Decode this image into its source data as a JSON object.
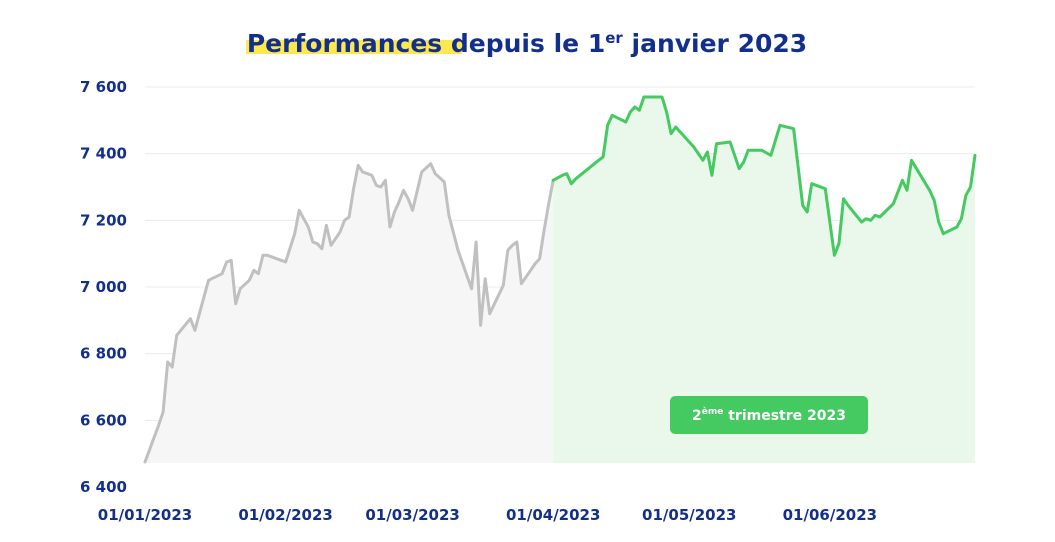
{
  "chart_data": {
    "type": "line",
    "title": {
      "highlight": "Performances",
      "part1": " depuis le 1",
      "sup": "er",
      "part2": " janvier 2023"
    },
    "highlight_color": "#fde84d",
    "title_color": "#132f8c",
    "xlabel": "",
    "ylabel": "",
    "ylim": [
      6400,
      7600
    ],
    "yticks": [
      7600,
      7400,
      7200,
      7000,
      6800,
      6600,
      6400
    ],
    "ytick_labels": [
      "7 600",
      "7 400",
      "7 200",
      "7 000",
      "6 800",
      "6 600",
      "6 400"
    ],
    "grid": true,
    "xlim": [
      "2023-01-01",
      "2023-06-30"
    ],
    "xtick_labels": [
      {
        "date": "2023-01-01",
        "label": "01/01/2023"
      },
      {
        "date": "2023-02-01",
        "label": "01/02/2023"
      },
      {
        "date": "2023-03-01",
        "label": "01/03/2023"
      },
      {
        "date": "2023-04-01",
        "label": "01/04/2023"
      },
      {
        "date": "2023-05-01",
        "label": "01/05/2023"
      },
      {
        "date": "2023-06-01",
        "label": "01/06/2023"
      }
    ],
    "highlight_period": {
      "start": "2023-04-01",
      "end": "2023-06-30",
      "label": "2",
      "label_sup": "ème",
      "label_rest": " trimestre 2023",
      "color": "#45c961",
      "fill": "#eaf8ec"
    },
    "q1_color": "#c0c0c0",
    "q1_fill": "#f6f6f6",
    "series": [
      {
        "values": [
          [
            "2023-01-01",
            6475
          ],
          [
            "2023-01-04",
            6585
          ],
          [
            "2023-01-05",
            6625
          ],
          [
            "2023-01-06",
            6775
          ],
          [
            "2023-01-07",
            6760
          ],
          [
            "2023-01-08",
            6855
          ],
          [
            "2023-01-11",
            6905
          ],
          [
            "2023-01-12",
            6870
          ],
          [
            "2023-01-13",
            6920
          ],
          [
            "2023-01-15",
            7020
          ],
          [
            "2023-01-18",
            7040
          ],
          [
            "2023-01-19",
            7075
          ],
          [
            "2023-01-20",
            7080
          ],
          [
            "2023-01-21",
            6950
          ],
          [
            "2023-01-22",
            6995
          ],
          [
            "2023-01-24",
            7020
          ],
          [
            "2023-01-25",
            7050
          ],
          [
            "2023-01-26",
            7040
          ],
          [
            "2023-01-27",
            7095
          ],
          [
            "2023-01-28",
            7095
          ],
          [
            "2023-01-31",
            7080
          ],
          [
            "2023-02-01",
            7075
          ],
          [
            "2023-02-03",
            7160
          ],
          [
            "2023-02-04",
            7230
          ],
          [
            "2023-02-05",
            7205
          ],
          [
            "2023-02-06",
            7180
          ],
          [
            "2023-02-07",
            7135
          ],
          [
            "2023-02-08",
            7130
          ],
          [
            "2023-02-09",
            7115
          ],
          [
            "2023-02-10",
            7185
          ],
          [
            "2023-02-11",
            7125
          ],
          [
            "2023-02-13",
            7165
          ],
          [
            "2023-02-14",
            7200
          ],
          [
            "2023-02-15",
            7210
          ],
          [
            "2023-02-16",
            7295
          ],
          [
            "2023-02-17",
            7365
          ],
          [
            "2023-02-18",
            7345
          ],
          [
            "2023-02-20",
            7335
          ],
          [
            "2023-02-21",
            7305
          ],
          [
            "2023-02-22",
            7300
          ],
          [
            "2023-02-23",
            7320
          ],
          [
            "2023-02-24",
            7180
          ],
          [
            "2023-02-25",
            7225
          ],
          [
            "2023-02-26",
            7255
          ],
          [
            "2023-02-27",
            7290
          ],
          [
            "2023-02-28",
            7265
          ],
          [
            "2023-03-01",
            7230
          ],
          [
            "2023-03-03",
            7345
          ],
          [
            "2023-03-05",
            7370
          ],
          [
            "2023-03-06",
            7340
          ],
          [
            "2023-03-08",
            7315
          ],
          [
            "2023-03-09",
            7215
          ],
          [
            "2023-03-11",
            7110
          ],
          [
            "2023-03-14",
            6995
          ],
          [
            "2023-03-15",
            7135
          ],
          [
            "2023-03-16",
            6885
          ],
          [
            "2023-03-17",
            7025
          ],
          [
            "2023-03-18",
            6920
          ],
          [
            "2023-03-21",
            7005
          ],
          [
            "2023-03-22",
            7110
          ],
          [
            "2023-03-23",
            7125
          ],
          [
            "2023-03-24",
            7135
          ],
          [
            "2023-03-25",
            7010
          ],
          [
            "2023-03-26",
            7030
          ],
          [
            "2023-03-28",
            7070
          ],
          [
            "2023-03-29",
            7085
          ],
          [
            "2023-03-30",
            7170
          ],
          [
            "2023-03-31",
            7250
          ],
          [
            "2023-04-01",
            7320
          ]
        ]
      },
      {
        "values": [
          [
            "2023-04-01",
            7320
          ],
          [
            "2023-04-03",
            7335
          ],
          [
            "2023-04-04",
            7340
          ],
          [
            "2023-04-05",
            7310
          ],
          [
            "2023-04-06",
            7325
          ],
          [
            "2023-04-11",
            7380
          ],
          [
            "2023-04-12",
            7390
          ],
          [
            "2023-04-13",
            7485
          ],
          [
            "2023-04-14",
            7515
          ],
          [
            "2023-04-17",
            7495
          ],
          [
            "2023-04-18",
            7525
          ],
          [
            "2023-04-19",
            7540
          ],
          [
            "2023-04-20",
            7530
          ],
          [
            "2023-04-21",
            7570
          ],
          [
            "2023-04-25",
            7570
          ],
          [
            "2023-04-26",
            7525
          ],
          [
            "2023-04-27",
            7460
          ],
          [
            "2023-04-28",
            7480
          ],
          [
            "2023-05-02",
            7420
          ],
          [
            "2023-05-04",
            7380
          ],
          [
            "2023-05-05",
            7405
          ],
          [
            "2023-05-06",
            7335
          ],
          [
            "2023-05-07",
            7430
          ],
          [
            "2023-05-10",
            7435
          ],
          [
            "2023-05-12",
            7355
          ],
          [
            "2023-05-13",
            7375
          ],
          [
            "2023-05-14",
            7410
          ],
          [
            "2023-05-17",
            7410
          ],
          [
            "2023-05-19",
            7395
          ],
          [
            "2023-05-21",
            7485
          ],
          [
            "2023-05-24",
            7475
          ],
          [
            "2023-05-26",
            7245
          ],
          [
            "2023-05-27",
            7225
          ],
          [
            "2023-05-28",
            7310
          ],
          [
            "2023-05-31",
            7295
          ],
          [
            "2023-06-02",
            7095
          ],
          [
            "2023-06-03",
            7130
          ],
          [
            "2023-06-04",
            7265
          ],
          [
            "2023-06-05",
            7245
          ],
          [
            "2023-06-08",
            7195
          ],
          [
            "2023-06-09",
            7205
          ],
          [
            "2023-06-10",
            7200
          ],
          [
            "2023-06-11",
            7215
          ],
          [
            "2023-06-12",
            7210
          ],
          [
            "2023-06-15",
            7250
          ],
          [
            "2023-06-17",
            7320
          ],
          [
            "2023-06-18",
            7290
          ],
          [
            "2023-06-19",
            7380
          ],
          [
            "2023-06-23",
            7290
          ],
          [
            "2023-06-24",
            7260
          ],
          [
            "2023-06-25",
            7195
          ],
          [
            "2023-06-26",
            7160
          ],
          [
            "2023-06-29",
            7180
          ],
          [
            "2023-06-30",
            7205
          ],
          [
            "2023-07-01",
            7275
          ],
          [
            "2023-07-02",
            7300
          ],
          [
            "2023-07-03",
            7395
          ]
        ]
      }
    ]
  }
}
